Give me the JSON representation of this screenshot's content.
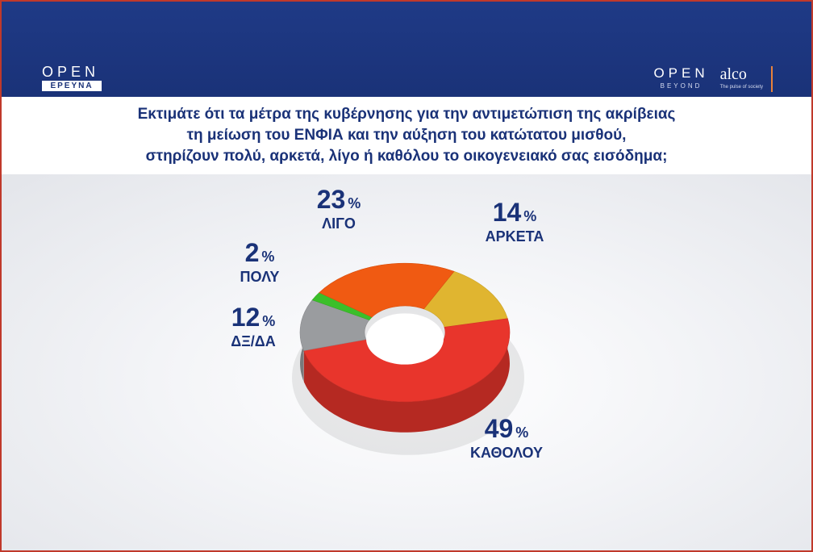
{
  "header": {
    "brand_left_word": "OPEN",
    "brand_left_tag": "ΕΡΕΥΝΑ",
    "brand_right_word": "OPEN",
    "brand_right_sub": "BEYOND",
    "partner_word": "alco",
    "partner_tagline": "The pulse of society",
    "background_color": "#1a3278"
  },
  "question": {
    "line1": "Εκτιμάτε ότι τα μέτρα της κυβέρνησης για την αντιμετώπιση της ακρίβειας",
    "line2": "τη μείωση του ΕΝΦΙΑ και την αύξηση του κατώτατου μισθού,",
    "line3": "στηρίζουν πολύ, αρκετά, λίγο ή καθόλου το οικογενειακό σας εισόδημα;"
  },
  "chart_data": {
    "type": "pie",
    "style": "3d-donut",
    "unit": "%",
    "slices": [
      {
        "label": "ΑΡΚΕΤΑ",
        "value": 14,
        "color": "#e0b530"
      },
      {
        "label": "ΚΑΘΟΛΟΥ",
        "value": 49,
        "color": "#e8352c"
      },
      {
        "label": "ΔΞ/ΔΑ",
        "value": 12,
        "color": "#9a9c9f"
      },
      {
        "label": "ΠΟΛΥ",
        "value": 2,
        "color": "#3bbf2a"
      },
      {
        "label": "ΛΙΓΟ",
        "value": 23,
        "color": "#f05a12"
      }
    ]
  }
}
